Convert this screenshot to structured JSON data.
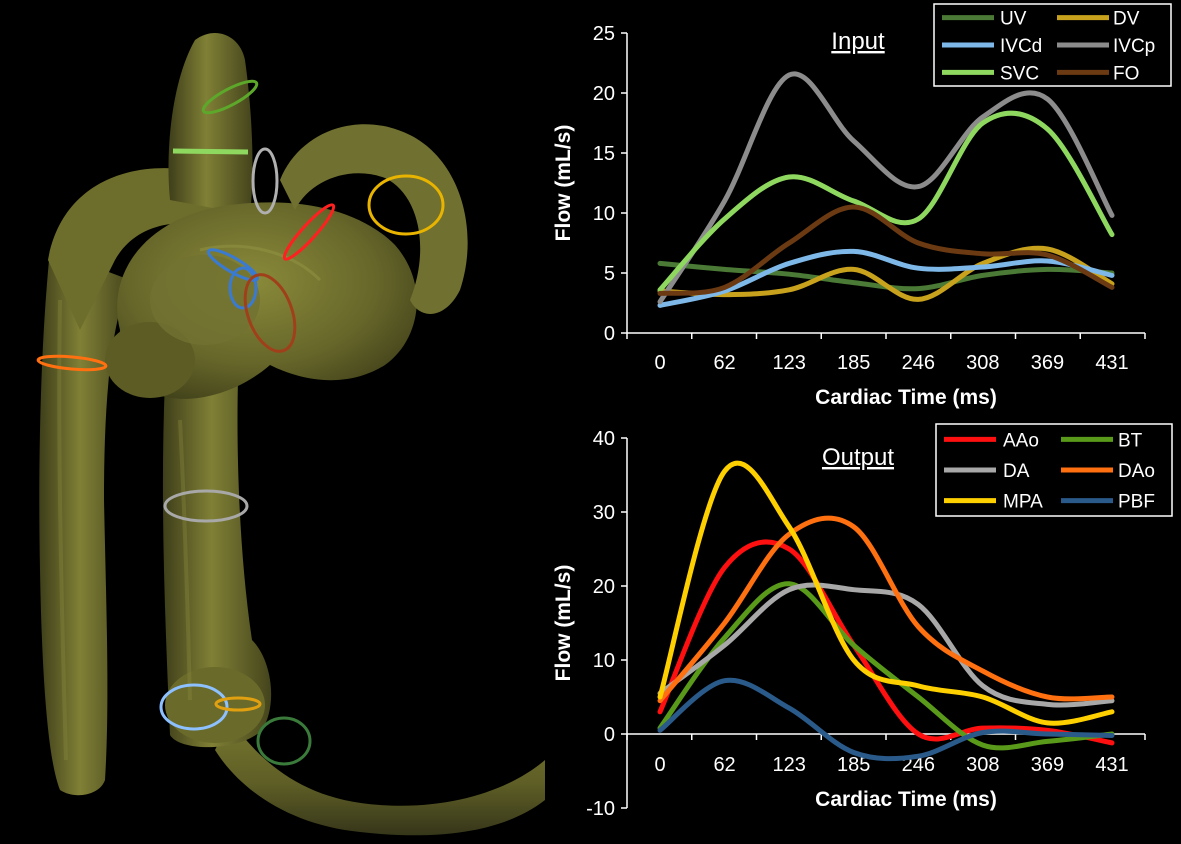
{
  "chart_data": [
    {
      "type": "line",
      "title": "Input",
      "xlabel": "Cardiac Time (ms)",
      "ylabel": "Flow (mL/s)",
      "x": [
        0,
        62,
        123,
        185,
        246,
        308,
        369,
        431
      ],
      "xticks": [
        "0",
        "62",
        "123",
        "185",
        "246",
        "308",
        "369",
        "431"
      ],
      "ylim": [
        0,
        25
      ],
      "yticks": [
        0,
        5,
        10,
        15,
        20,
        25
      ],
      "legend_position": "top-right",
      "series": [
        {
          "name": "UV",
          "color": "#4a7a35",
          "values": [
            5.8,
            5.3,
            4.9,
            4.2,
            3.7,
            4.8,
            5.3,
            5.0
          ]
        },
        {
          "name": "DV",
          "color": "#c8a21c",
          "values": [
            3.5,
            3.2,
            3.6,
            5.3,
            2.8,
            5.8,
            7.0,
            4.1
          ]
        },
        {
          "name": "IVCd",
          "color": "#7db8e8",
          "values": [
            2.3,
            3.5,
            5.8,
            6.8,
            5.4,
            5.5,
            6.0,
            4.8
          ]
        },
        {
          "name": "IVCp",
          "color": "#8c8c8c",
          "values": [
            2.6,
            11.0,
            21.5,
            16.0,
            12.2,
            18.0,
            19.5,
            9.8
          ]
        },
        {
          "name": "SVC",
          "color": "#8fd860",
          "values": [
            3.6,
            9.5,
            13.0,
            11.0,
            9.5,
            17.5,
            17.0,
            8.2
          ]
        },
        {
          "name": "FO",
          "color": "#6b3a12",
          "values": [
            3.3,
            3.8,
            7.5,
            10.5,
            7.5,
            6.6,
            6.5,
            3.8
          ]
        }
      ]
    },
    {
      "type": "line",
      "title": "Output",
      "xlabel": "Cardiac Time (ms)",
      "ylabel": "Flow (mL/s)",
      "x": [
        0,
        62,
        123,
        185,
        246,
        308,
        369,
        431
      ],
      "xticks": [
        "0",
        "62",
        "123",
        "185",
        "246",
        "308",
        "369",
        "431"
      ],
      "ylim": [
        -10,
        40
      ],
      "yticks": [
        -10,
        0,
        10,
        20,
        30,
        40
      ],
      "legend_position": "top-right",
      "series": [
        {
          "name": "AAo",
          "color": "#ff1010",
          "values": [
            3.0,
            22.5,
            25.0,
            12.0,
            0.0,
            0.8,
            0.5,
            -1.2
          ]
        },
        {
          "name": "BT",
          "color": "#5a9a1a",
          "values": [
            0.8,
            13.0,
            20.3,
            12.0,
            5.0,
            -1.5,
            -1.0,
            0.0
          ]
        },
        {
          "name": "DA",
          "color": "#a8a8a8",
          "values": [
            5.5,
            12.0,
            19.5,
            19.5,
            17.5,
            6.5,
            4.0,
            4.5
          ]
        },
        {
          "name": "DAo",
          "color": "#ff7010",
          "values": [
            4.5,
            15.0,
            27.0,
            28.0,
            14.5,
            8.5,
            5.0,
            5.0
          ]
        },
        {
          "name": "MPA",
          "color": "#ffd000",
          "values": [
            5.0,
            35.5,
            28.0,
            10.0,
            6.5,
            5.0,
            1.5,
            3.0
          ]
        },
        {
          "name": "PBF",
          "color": "#2a5a8a",
          "values": [
            0.5,
            7.2,
            3.5,
            -2.5,
            -3.0,
            0.2,
            0.0,
            -0.2
          ]
        }
      ]
    }
  ]
}
